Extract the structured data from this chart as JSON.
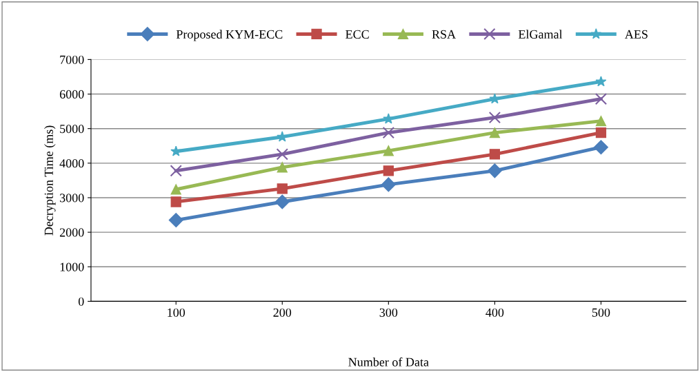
{
  "chart_data": {
    "type": "line",
    "xlabel": "Number of Data",
    "ylabel": "Decryption Time (ms)",
    "categories": [
      "100",
      "200",
      "300",
      "400",
      "500"
    ],
    "ylim": [
      0,
      7000
    ],
    "yticks": [
      0,
      1000,
      2000,
      3000,
      4000,
      5000,
      6000,
      7000
    ],
    "grid": "y",
    "legend": "top",
    "line_style": "solid",
    "series": [
      {
        "name": "Proposed KYM-ECC",
        "color": "#4a7ebb",
        "marker": "diamond",
        "values": [
          2350,
          2880,
          3380,
          3780,
          4460
        ]
      },
      {
        "name": "ECC",
        "color": "#be4b48",
        "marker": "square",
        "values": [
          2880,
          3260,
          3780,
          4260,
          4880
        ]
      },
      {
        "name": "RSA",
        "color": "#98b954",
        "marker": "triangle",
        "values": [
          3240,
          3880,
          4360,
          4880,
          5220
        ]
      },
      {
        "name": "ElGamal",
        "color": "#7d60a0",
        "marker": "cross",
        "values": [
          3780,
          4260,
          4880,
          5320,
          5860
        ]
      },
      {
        "name": "AES",
        "color": "#46aac5",
        "marker": "star",
        "values": [
          4340,
          4760,
          5280,
          5860,
          6360
        ]
      }
    ]
  }
}
